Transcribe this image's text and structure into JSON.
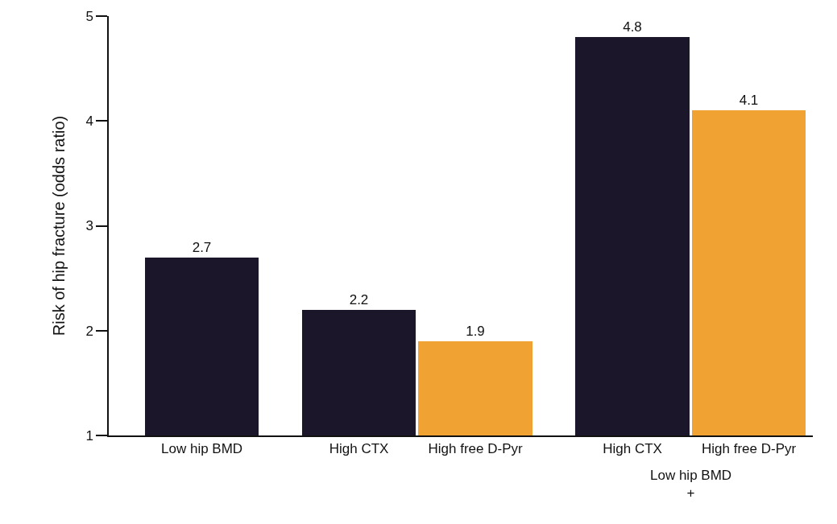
{
  "chart_data": {
    "type": "bar",
    "categories": [
      "Low hip BMD",
      "High CTX",
      "High free D-Pyr",
      "High CTX",
      "High free D-Pyr"
    ],
    "values": [
      2.7,
      2.2,
      1.9,
      4.8,
      4.1
    ],
    "colors": [
      "#1b1629",
      "#1b1629",
      "#f0a232",
      "#1b1629",
      "#f0a232"
    ],
    "ylabel": "Risk of hip fracture (odds ratio)",
    "ylim": [
      1,
      5
    ],
    "yticks": [
      1,
      2,
      3,
      4,
      5
    ],
    "annotations": [
      "Low hip BMD\n+"
    ],
    "data_labels": true
  }
}
